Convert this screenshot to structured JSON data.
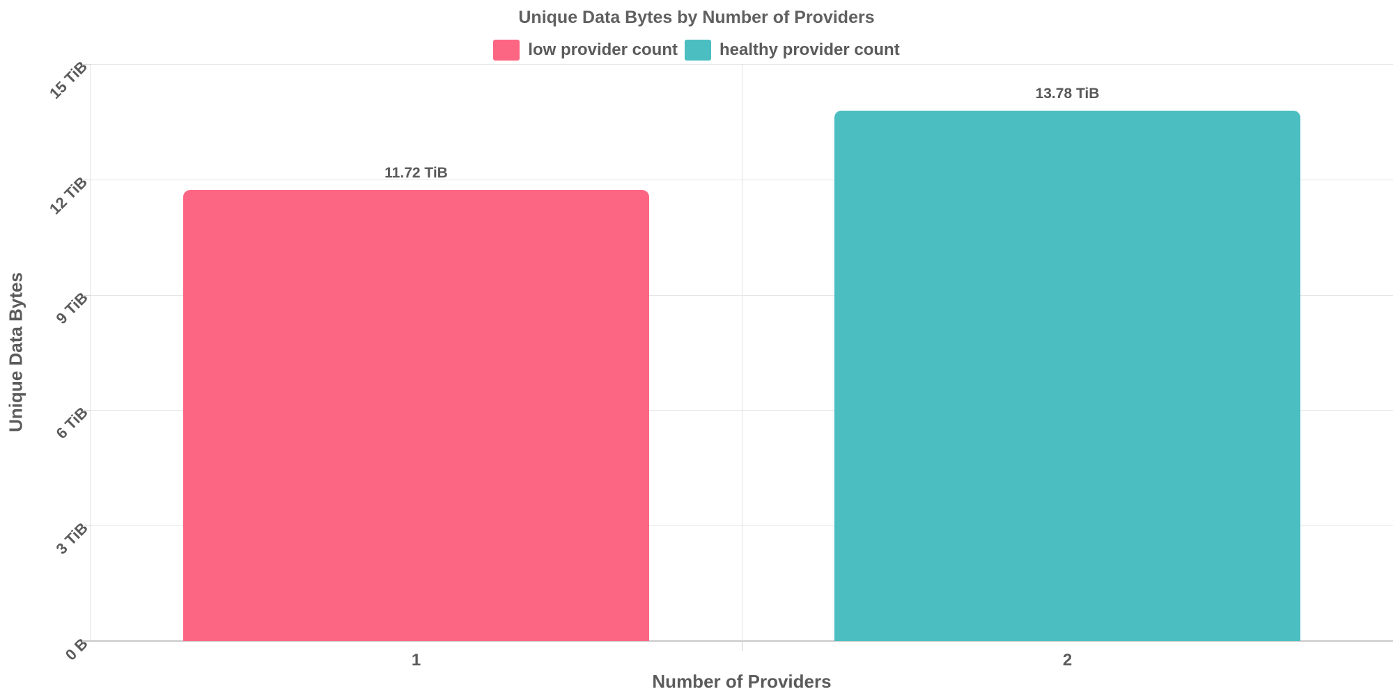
{
  "chart_data": {
    "type": "bar",
    "title": "Unique Data Bytes by Number of Providers",
    "xlabel": "Number of Providers",
    "ylabel": "Unique Data Bytes",
    "categories": [
      "1",
      "2"
    ],
    "series": [
      {
        "name": "low provider count",
        "category": "1",
        "value_tib": 11.72,
        "value_label": "11.72 TiB",
        "color": "#fd6683"
      },
      {
        "name": "healthy provider count",
        "category": "2",
        "value_tib": 13.78,
        "value_label": "13.78 TiB",
        "color": "#4bbec1"
      }
    ],
    "ylim_tib": [
      0,
      15
    ],
    "yticks": [
      {
        "value_tib": 0,
        "label": "0 B"
      },
      {
        "value_tib": 3,
        "label": "3 TiB"
      },
      {
        "value_tib": 6,
        "label": "6 TiB"
      },
      {
        "value_tib": 9,
        "label": "9 TiB"
      },
      {
        "value_tib": 12,
        "label": "12 TiB"
      },
      {
        "value_tib": 15,
        "label": "15 TiB"
      }
    ],
    "grid": true,
    "legend_position": "top-center",
    "value_labels": "above bars"
  },
  "colors": {
    "background": "#ffffff",
    "text": "#5b5b5b",
    "gridline": "#e6e6e6",
    "axis_line": "#d9d9d9",
    "baseline": "#c9c9c9",
    "low_provider_count": "#fd6683",
    "healthy_provider_count": "#4bbec1"
  }
}
